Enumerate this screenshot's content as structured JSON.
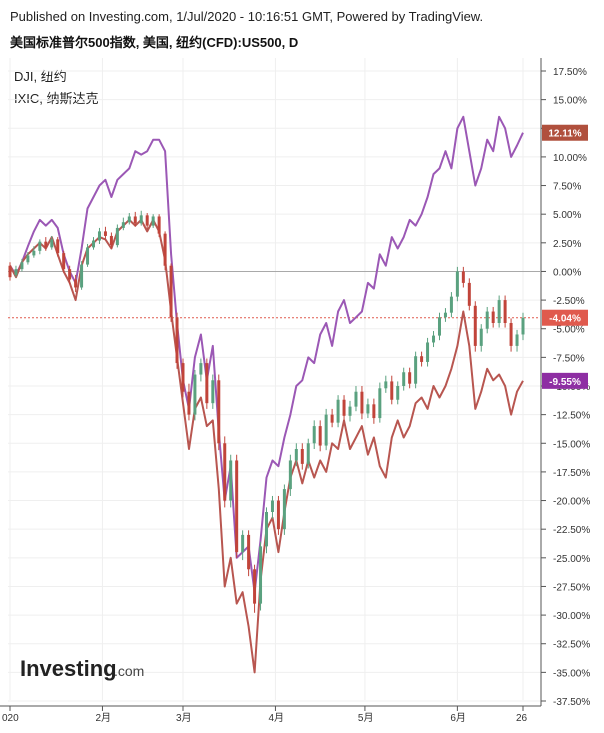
{
  "header": {
    "published": "Published on Investing.com, 1/Jul/2020 - 10:16:51 GMT, Powered by TradingView.",
    "subtitle": "美国标准普尔500指数, 美国, 纽约(CFD):US500, D"
  },
  "legend": [
    "DJI, 纽约",
    "IXIC, 纳斯达克"
  ],
  "brand": {
    "logo_text": "Investing",
    "logo_suffix": ".com"
  },
  "colors": {
    "background": "#ffffff",
    "grid": "#efefef",
    "zero_line": "#a9a9a9",
    "current_line": "#e05a4e",
    "candle_up": "#5aa17f",
    "candle_down": "#c1443a",
    "dji_line": "#b85650",
    "ixic_line": "#9b58b5",
    "label_ixic_bg": "#b0503d",
    "label_sp_bg": "#e05a4e",
    "label_dji_bg": "#8e2ea3"
  },
  "chart_data": {
    "type": "line",
    "title": "",
    "x_tick_labels": [
      "020",
      "2月",
      "3月",
      "4月",
      "5月",
      "6月",
      "26"
    ],
    "y_tick_labels": [
      "17.50%",
      "15.00%",
      "12.50%",
      "10.00%",
      "7.50%",
      "5.00%",
      "2.50%",
      "0.00%",
      "-2.50%",
      "-5.00%",
      "-7.50%",
      "-10.00%",
      "-12.50%",
      "-15.00%",
      "-17.50%",
      "-20.00%",
      "-22.50%",
      "-25.00%",
      "-27.50%",
      "-30.00%",
      "-32.50%",
      "-35.00%",
      "-37.50%"
    ],
    "ylim": [
      -37.5,
      17.5
    ],
    "yaxis_unit": "%",
    "grid": true,
    "last_value_labels": [
      {
        "text": "12.11%",
        "series": "upper line"
      },
      {
        "text": "-4.04%",
        "series": "candles"
      },
      {
        "text": "-9.55%",
        "series": "lower line"
      }
    ],
    "x_index_count": 125,
    "series": [
      {
        "style": "line",
        "color_key": "ixic_line",
        "points": [
          [
            0,
            0.5
          ],
          [
            2,
            -0.3
          ],
          [
            4,
            0.8
          ],
          [
            6,
            2.2
          ],
          [
            8,
            3.5
          ],
          [
            10,
            4.5
          ],
          [
            12,
            4.0
          ],
          [
            14,
            4.5
          ],
          [
            16,
            3.8
          ],
          [
            18,
            1.5
          ],
          [
            20,
            0.0
          ],
          [
            22,
            -1.0
          ],
          [
            24,
            2.0
          ],
          [
            26,
            5.5
          ],
          [
            28,
            6.5
          ],
          [
            30,
            7.5
          ],
          [
            32,
            8.0
          ],
          [
            34,
            6.5
          ],
          [
            36,
            8.0
          ],
          [
            38,
            8.5
          ],
          [
            40,
            9.0
          ],
          [
            42,
            10.5
          ],
          [
            44,
            10.2
          ],
          [
            46,
            10.5
          ],
          [
            48,
            11.5
          ],
          [
            50,
            11.5
          ],
          [
            52,
            10.5
          ],
          [
            54,
            1.5
          ],
          [
            56,
            -4.5
          ],
          [
            58,
            -9.5
          ],
          [
            60,
            -12.0
          ],
          [
            62,
            -7.5
          ],
          [
            64,
            -5.5
          ],
          [
            66,
            -9.5
          ],
          [
            68,
            -6.5
          ],
          [
            70,
            -14.0
          ],
          [
            72,
            -20.0
          ],
          [
            74,
            -17.0
          ],
          [
            76,
            -25.0
          ],
          [
            78,
            -24.5
          ],
          [
            80,
            -24.0
          ],
          [
            82,
            -28.0
          ],
          [
            84,
            -23.5
          ],
          [
            86,
            -18.0
          ],
          [
            88,
            -16.5
          ],
          [
            90,
            -17.0
          ],
          [
            92,
            -14.5
          ],
          [
            94,
            -12.5
          ],
          [
            96,
            -10.0
          ],
          [
            98,
            -9.5
          ],
          [
            100,
            -7.5
          ],
          [
            102,
            -8.0
          ],
          [
            104,
            -5.5
          ],
          [
            106,
            -4.5
          ],
          [
            108,
            -6.5
          ],
          [
            110,
            -3.5
          ],
          [
            112,
            -2.5
          ],
          [
            114,
            -4.5
          ],
          [
            116,
            -4.0
          ],
          [
            118,
            -3.5
          ],
          [
            120,
            -1.0
          ],
          [
            122,
            -1.5
          ],
          [
            124,
            1.5
          ],
          [
            126,
            0.5
          ],
          [
            128,
            3.0
          ],
          [
            130,
            2.0
          ],
          [
            132,
            3.0
          ],
          [
            134,
            4.5
          ],
          [
            136,
            4.0
          ],
          [
            138,
            5.0
          ],
          [
            140,
            6.5
          ],
          [
            142,
            8.5
          ],
          [
            144,
            9.0
          ],
          [
            146,
            10.5
          ],
          [
            148,
            9.0
          ],
          [
            150,
            12.5
          ],
          [
            152,
            13.5
          ],
          [
            154,
            10.5
          ],
          [
            156,
            7.5
          ],
          [
            158,
            9.0
          ],
          [
            160,
            11.5
          ],
          [
            162,
            10.5
          ],
          [
            164,
            13.5
          ],
          [
            166,
            12.5
          ],
          [
            168,
            10.0
          ],
          [
            170,
            11.0
          ],
          [
            172,
            12.11
          ]
        ]
      },
      {
        "style": "line",
        "color_key": "dji_line",
        "points": [
          [
            0,
            0.5
          ],
          [
            2,
            -0.5
          ],
          [
            4,
            0.8
          ],
          [
            6,
            1.5
          ],
          [
            8,
            2.0
          ],
          [
            10,
            2.5
          ],
          [
            12,
            2.0
          ],
          [
            14,
            3.0
          ],
          [
            16,
            1.5
          ],
          [
            18,
            0.0
          ],
          [
            20,
            -1.0
          ],
          [
            22,
            -2.5
          ],
          [
            24,
            0.5
          ],
          [
            26,
            2.0
          ],
          [
            28,
            2.5
          ],
          [
            30,
            3.0
          ],
          [
            32,
            2.8
          ],
          [
            34,
            2.0
          ],
          [
            36,
            3.5
          ],
          [
            38,
            4.0
          ],
          [
            40,
            4.5
          ],
          [
            42,
            4.0
          ],
          [
            44,
            4.5
          ],
          [
            46,
            3.5
          ],
          [
            48,
            4.5
          ],
          [
            50,
            3.5
          ],
          [
            52,
            1.0
          ],
          [
            54,
            -3.5
          ],
          [
            56,
            -7.5
          ],
          [
            58,
            -11.5
          ],
          [
            60,
            -15.5
          ],
          [
            62,
            -12.0
          ],
          [
            64,
            -11.0
          ],
          [
            66,
            -13.5
          ],
          [
            68,
            -13.0
          ],
          [
            70,
            -19.0
          ],
          [
            72,
            -27.5
          ],
          [
            74,
            -25.0
          ],
          [
            76,
            -29.0
          ],
          [
            78,
            -28.0
          ],
          [
            80,
            -31.0
          ],
          [
            82,
            -35.0
          ],
          [
            84,
            -27.0
          ],
          [
            86,
            -22.5
          ],
          [
            88,
            -21.5
          ],
          [
            90,
            -24.5
          ],
          [
            92,
            -21.0
          ],
          [
            94,
            -18.0
          ],
          [
            96,
            -16.5
          ],
          [
            98,
            -18.5
          ],
          [
            100,
            -16.5
          ],
          [
            102,
            -18.0
          ],
          [
            104,
            -16.5
          ],
          [
            106,
            -17.5
          ],
          [
            108,
            -15.0
          ],
          [
            110,
            -15.5
          ],
          [
            112,
            -13.0
          ],
          [
            114,
            -15.5
          ],
          [
            116,
            -14.5
          ],
          [
            118,
            -13.5
          ],
          [
            120,
            -16.0
          ],
          [
            122,
            -14.5
          ],
          [
            124,
            -17.0
          ],
          [
            126,
            -18.0
          ],
          [
            128,
            -14.5
          ],
          [
            130,
            -13.0
          ],
          [
            132,
            -14.5
          ],
          [
            134,
            -13.5
          ],
          [
            136,
            -11.5
          ],
          [
            138,
            -11.0
          ],
          [
            140,
            -12.0
          ],
          [
            142,
            -10.0
          ],
          [
            144,
            -11.0
          ],
          [
            146,
            -10.0
          ],
          [
            148,
            -8.5
          ],
          [
            150,
            -6.5
          ],
          [
            152,
            -3.5
          ],
          [
            154,
            -6.5
          ],
          [
            156,
            -12.0
          ],
          [
            158,
            -10.5
          ],
          [
            160,
            -8.5
          ],
          [
            162,
            -9.5
          ],
          [
            164,
            -9.0
          ],
          [
            166,
            -10.0
          ],
          [
            168,
            -12.5
          ],
          [
            170,
            -10.5
          ],
          [
            172,
            -9.55
          ]
        ]
      }
    ],
    "candles": [
      [
        0,
        0.5,
        -0.5,
        0.8,
        -0.8
      ],
      [
        2,
        -0.3,
        0.2,
        0.5,
        -0.5
      ],
      [
        4,
        0.2,
        0.8,
        1.1,
        0.0
      ],
      [
        6,
        0.8,
        1.4,
        1.7,
        0.6
      ],
      [
        8,
        1.4,
        1.8,
        2.2,
        1.2
      ],
      [
        10,
        1.8,
        2.6,
        2.8,
        1.5
      ],
      [
        12,
        2.6,
        2.1,
        3.0,
        1.8
      ],
      [
        14,
        2.1,
        2.8,
        3.1,
        1.9
      ],
      [
        16,
        2.8,
        1.6,
        3.0,
        1.3
      ],
      [
        18,
        1.6,
        0.2,
        1.8,
        -0.1
      ],
      [
        20,
        0.2,
        -0.7,
        0.5,
        -1.1
      ],
      [
        22,
        -0.7,
        -1.4,
        -0.3,
        -1.8
      ],
      [
        24,
        -1.4,
        0.6,
        0.9,
        -1.6
      ],
      [
        26,
        0.6,
        2.1,
        2.4,
        0.4
      ],
      [
        28,
        2.1,
        2.7,
        3.0,
        1.9
      ],
      [
        30,
        2.7,
        3.5,
        3.8,
        2.4
      ],
      [
        32,
        3.5,
        3.1,
        3.9,
        2.8
      ],
      [
        34,
        3.1,
        2.3,
        3.4,
        2.0
      ],
      [
        36,
        2.3,
        3.8,
        4.1,
        2.1
      ],
      [
        38,
        3.8,
        4.3,
        4.7,
        3.6
      ],
      [
        40,
        4.3,
        4.8,
        5.1,
        4.1
      ],
      [
        42,
        4.8,
        4.2,
        5.2,
        3.9
      ],
      [
        44,
        4.2,
        4.9,
        5.3,
        4.0
      ],
      [
        46,
        4.9,
        4.0,
        5.1,
        3.7
      ],
      [
        48,
        4.0,
        4.8,
        5.0,
        3.8
      ],
      [
        50,
        4.8,
        3.3,
        5.0,
        3.0
      ],
      [
        52,
        3.3,
        0.5,
        3.5,
        0.1
      ],
      [
        54,
        0.5,
        -4.0,
        0.7,
        -4.4
      ],
      [
        56,
        -4.0,
        -8.0,
        -3.6,
        -8.5
      ],
      [
        58,
        -8.0,
        -10.5,
        -7.6,
        -11.0
      ],
      [
        60,
        -10.5,
        -12.5,
        -9.8,
        -13.0
      ],
      [
        62,
        -12.5,
        -9.0,
        -8.6,
        -13.0
      ],
      [
        64,
        -9.0,
        -8.0,
        -7.6,
        -9.6
      ],
      [
        66,
        -8.0,
        -11.5,
        -7.6,
        -12.0
      ],
      [
        68,
        -11.5,
        -9.5,
        -9.0,
        -12.0
      ],
      [
        70,
        -9.5,
        -15.0,
        -9.0,
        -15.6
      ],
      [
        72,
        -15.0,
        -20.0,
        -14.4,
        -20.6
      ],
      [
        74,
        -20.0,
        -16.5,
        -16.0,
        -20.6
      ],
      [
        76,
        -16.5,
        -24.5,
        -16.0,
        -25.0
      ],
      [
        78,
        -24.5,
        -23.0,
        -22.6,
        -25.2
      ],
      [
        80,
        -23.0,
        -26.0,
        -22.6,
        -26.6
      ],
      [
        82,
        -26.0,
        -29.0,
        -25.6,
        -29.8
      ],
      [
        84,
        -29.0,
        -24.0,
        -23.6,
        -29.6
      ],
      [
        86,
        -24.0,
        -21.0,
        -20.6,
        -24.6
      ],
      [
        88,
        -21.0,
        -20.0,
        -19.6,
        -21.6
      ],
      [
        90,
        -20.0,
        -22.5,
        -19.6,
        -23.0
      ],
      [
        92,
        -22.5,
        -19.0,
        -18.6,
        -23.0
      ],
      [
        94,
        -19.0,
        -16.5,
        -16.0,
        -19.6
      ],
      [
        96,
        -16.5,
        -15.5,
        -15.0,
        -17.0
      ],
      [
        98,
        -15.5,
        -16.8,
        -15.0,
        -17.3
      ],
      [
        100,
        -16.8,
        -15.0,
        -14.6,
        -17.2
      ],
      [
        102,
        -15.0,
        -13.5,
        -13.0,
        -15.5
      ],
      [
        104,
        -13.5,
        -15.2,
        -13.0,
        -15.7
      ],
      [
        106,
        -15.2,
        -12.5,
        -12.0,
        -15.6
      ],
      [
        108,
        -12.5,
        -13.2,
        -12.0,
        -13.6
      ],
      [
        110,
        -13.2,
        -11.2,
        -10.8,
        -13.6
      ],
      [
        112,
        -11.2,
        -12.6,
        -10.8,
        -13.0
      ],
      [
        114,
        -12.6,
        -11.8,
        -11.3,
        -13.1
      ],
      [
        116,
        -11.8,
        -10.5,
        -10.0,
        -12.2
      ],
      [
        118,
        -10.5,
        -12.4,
        -10.0,
        -12.9
      ],
      [
        120,
        -12.4,
        -11.6,
        -11.1,
        -12.8
      ],
      [
        122,
        -11.6,
        -12.8,
        -11.1,
        -13.3
      ],
      [
        124,
        -12.8,
        -10.2,
        -9.7,
        -13.2
      ],
      [
        126,
        -10.2,
        -9.6,
        -9.1,
        -10.6
      ],
      [
        128,
        -9.6,
        -11.2,
        -9.1,
        -11.6
      ],
      [
        130,
        -11.2,
        -10.0,
        -9.6,
        -11.6
      ],
      [
        132,
        -10.0,
        -8.8,
        -8.4,
        -10.4
      ],
      [
        134,
        -8.8,
        -9.8,
        -8.4,
        -10.2
      ],
      [
        136,
        -9.8,
        -7.4,
        -7.0,
        -10.2
      ],
      [
        138,
        -7.4,
        -7.9,
        -7.0,
        -8.3
      ],
      [
        140,
        -7.9,
        -6.2,
        -5.8,
        -8.3
      ],
      [
        142,
        -6.2,
        -5.6,
        -5.2,
        -6.6
      ],
      [
        144,
        -5.6,
        -4.0,
        -3.6,
        -6.0
      ],
      [
        146,
        -4.0,
        -3.6,
        -3.2,
        -4.4
      ],
      [
        148,
        -3.6,
        -2.2,
        -1.8,
        -4.0
      ],
      [
        150,
        -2.2,
        0.0,
        0.4,
        -2.6
      ],
      [
        152,
        0.0,
        -1.0,
        0.4,
        -1.4
      ],
      [
        154,
        -1.0,
        -3.0,
        -0.6,
        -3.4
      ],
      [
        156,
        -3.0,
        -6.5,
        -2.6,
        -7.0
      ],
      [
        158,
        -6.5,
        -5.0,
        -4.6,
        -7.0
      ],
      [
        160,
        -5.0,
        -3.5,
        -3.1,
        -5.4
      ],
      [
        162,
        -3.5,
        -4.5,
        -3.1,
        -4.9
      ],
      [
        164,
        -4.5,
        -2.5,
        -2.1,
        -4.9
      ],
      [
        166,
        -2.5,
        -4.5,
        -2.1,
        -4.9
      ],
      [
        168,
        -4.5,
        -6.5,
        -4.1,
        -7.0
      ],
      [
        170,
        -6.5,
        -5.5,
        -5.1,
        -7.0
      ],
      [
        172,
        -5.5,
        -4.04,
        -3.6,
        -6.0
      ]
    ],
    "candle_fields": [
      "index",
      "open",
      "close",
      "high",
      "low"
    ]
  }
}
